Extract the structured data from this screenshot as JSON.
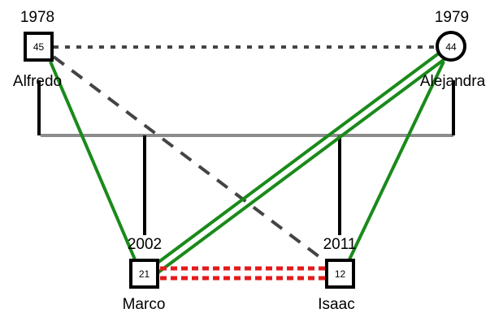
{
  "people": {
    "alfredo": {
      "name": "Alfredo",
      "year": "1978",
      "age": "45",
      "sex": "male",
      "shape": "square"
    },
    "alejandra": {
      "name": "Alejandra",
      "year": "1979",
      "age": "44",
      "sex": "female",
      "shape": "circle"
    },
    "marco": {
      "name": "Marco",
      "year": "2002",
      "age": "21",
      "sex": "male",
      "shape": "square"
    },
    "isaac": {
      "name": "Isaac",
      "year": "2011",
      "age": "12",
      "sex": "male",
      "shape": "square"
    }
  },
  "colors": {
    "black": "#000000",
    "sibship_line": "#8c8c8c",
    "distant_line": "#444444",
    "close_line": "#1a8a1a",
    "conflict_line": "#e31a1c"
  },
  "relationships": [
    {
      "from": "alfredo",
      "to": "alejandra",
      "type": "distant",
      "style": "dotted"
    },
    {
      "from": "alfredo",
      "to": "isaac",
      "type": "distant",
      "style": "dashed"
    },
    {
      "from": "alfredo",
      "to": "marco",
      "type": "close",
      "style": "single"
    },
    {
      "from": "alejandra",
      "to": "isaac",
      "type": "close",
      "style": "single"
    },
    {
      "from": "alejandra",
      "to": "marco",
      "type": "very-close",
      "style": "double"
    },
    {
      "from": "marco",
      "to": "isaac",
      "type": "conflict",
      "style": "double-dotted"
    }
  ]
}
